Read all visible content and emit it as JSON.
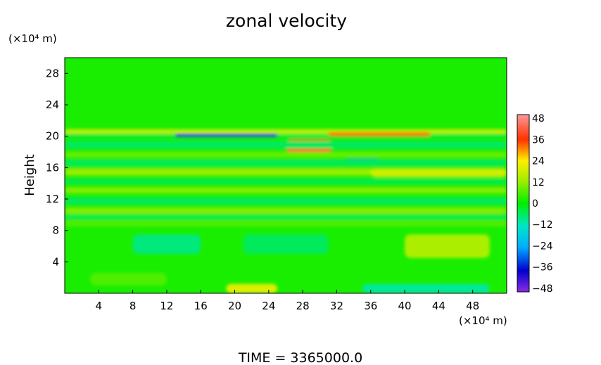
{
  "chart_data": {
    "type": "heatmap",
    "title": "zonal velocity",
    "ylabel": "Height",
    "y_unit": "(×10⁴ m)",
    "x_unit": "(×10⁴ m)",
    "footer": "TIME  =  3365000.0",
    "xlim": [
      0,
      52
    ],
    "ylim": [
      0,
      30
    ],
    "x_ticks": [
      4,
      8,
      12,
      16,
      20,
      24,
      28,
      32,
      36,
      40,
      44,
      48
    ],
    "y_ticks": [
      4,
      8,
      12,
      16,
      20,
      24,
      28
    ],
    "colorbar": {
      "min": -50,
      "max": 50,
      "ticks": [
        -48,
        -36,
        -24,
        -12,
        0,
        12,
        24,
        36,
        48
      ],
      "tick_labels": [
        "−48",
        "−36",
        "−24",
        "−12",
        "0",
        "12",
        "24",
        "36",
        "48"
      ]
    },
    "background_value": 2,
    "features": [
      {
        "x": [
          0,
          52
        ],
        "y": [
          20.3,
          20.9
        ],
        "value": 16
      },
      {
        "x": [
          0,
          52
        ],
        "y": [
          19.8,
          20.3
        ],
        "value": -4
      },
      {
        "x": [
          13,
          25
        ],
        "y": [
          19.9,
          20.3
        ],
        "value": -40
      },
      {
        "x": [
          31,
          43
        ],
        "y": [
          20.0,
          20.5
        ],
        "value": 32
      },
      {
        "x": [
          26,
          31.5
        ],
        "y": [
          17.9,
          19.6
        ],
        "value": 40
      },
      {
        "x": [
          0,
          52
        ],
        "y": [
          18.4,
          19.4
        ],
        "value": -6
      },
      {
        "x": [
          0,
          52
        ],
        "y": [
          17.3,
          18.0
        ],
        "value": 8
      },
      {
        "x": [
          33,
          37
        ],
        "y": [
          16.3,
          17.1
        ],
        "value": -28
      },
      {
        "x": [
          0,
          52
        ],
        "y": [
          16.2,
          17.0
        ],
        "value": -6
      },
      {
        "x": [
          0,
          52
        ],
        "y": [
          15.0,
          15.9
        ],
        "value": 12
      },
      {
        "x": [
          36,
          52
        ],
        "y": [
          14.8,
          15.9
        ],
        "value": 18
      },
      {
        "x": [
          0,
          52
        ],
        "y": [
          13.9,
          14.6
        ],
        "value": -5
      },
      {
        "x": [
          0,
          52
        ],
        "y": [
          12.7,
          13.5
        ],
        "value": 10
      },
      {
        "x": [
          0,
          52
        ],
        "y": [
          11.3,
          12.2
        ],
        "value": -6
      },
      {
        "x": [
          0,
          52
        ],
        "y": [
          10.1,
          10.9
        ],
        "value": 10
      },
      {
        "x": [
          0,
          52
        ],
        "y": [
          9.4,
          10.0
        ],
        "value": -5
      },
      {
        "x": [
          0,
          52
        ],
        "y": [
          8.5,
          9.3
        ],
        "value": 6
      },
      {
        "x": [
          8,
          16
        ],
        "y": [
          5.0,
          7.5
        ],
        "value": -8
      },
      {
        "x": [
          21,
          31
        ],
        "y": [
          5.0,
          7.5
        ],
        "value": -6
      },
      {
        "x": [
          40,
          50
        ],
        "y": [
          4.5,
          7.5
        ],
        "value": 14
      },
      {
        "x": [
          19,
          25
        ],
        "y": [
          0.0,
          1.2
        ],
        "value": 20
      },
      {
        "x": [
          35,
          50
        ],
        "y": [
          0.0,
          1.2
        ],
        "value": -10
      },
      {
        "x": [
          3,
          12
        ],
        "y": [
          1.0,
          2.6
        ],
        "value": 6
      }
    ]
  }
}
